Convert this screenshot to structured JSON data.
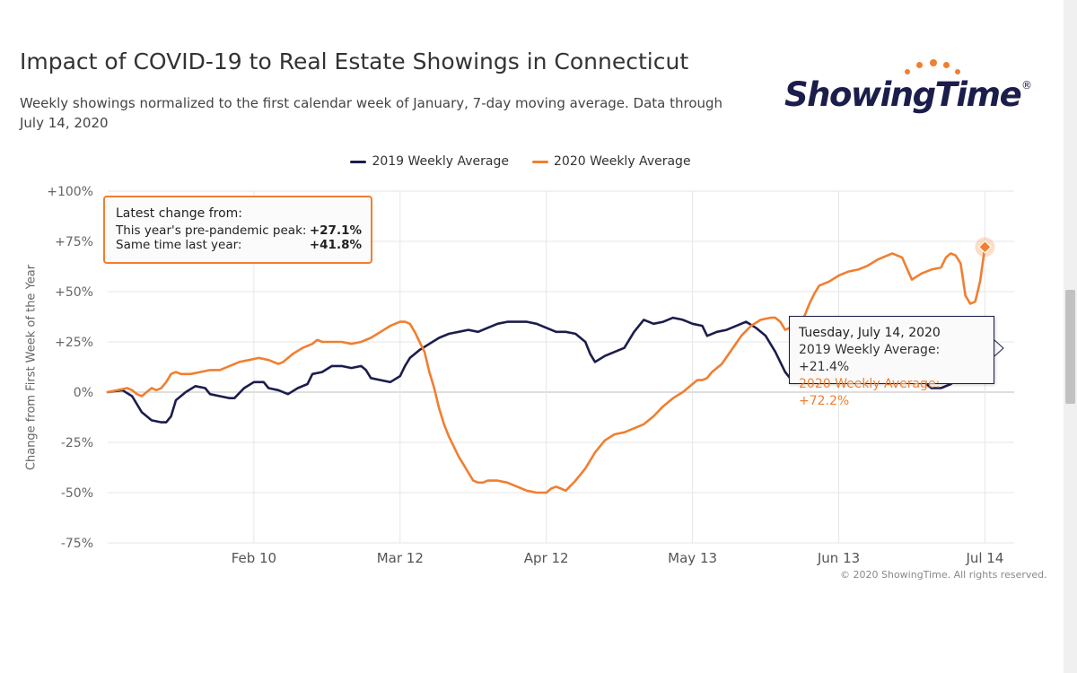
{
  "header": {
    "title": "Impact of COVID-19 to Real Estate Showings in Connecticut",
    "subtitle": "Weekly showings normalized to the first calendar week of January, 7-day moving average. Data through July 14, 2020"
  },
  "logo": {
    "text": "ShowingTime",
    "reg": "®",
    "color": "#1b1d4b",
    "dot_color": "#f07f30"
  },
  "colors": {
    "s2019": "#1b1d4b",
    "s2020": "#f07f30",
    "grid": "#e6e6e6",
    "text": "#333333"
  },
  "chart_data": {
    "type": "line",
    "title": "Impact of COVID-19 to Real Estate Showings in Connecticut",
    "ylabel": "Change from First Week of the Year",
    "xlabel": "",
    "ylim": [
      -75,
      100
    ],
    "x_range_days": [
      0,
      186
    ],
    "x_ticks": [
      {
        "label": "Feb 10",
        "day": 30
      },
      {
        "label": "Mar 12",
        "day": 60
      },
      {
        "label": "Apr 12",
        "day": 90
      },
      {
        "label": "May 13",
        "day": 120
      },
      {
        "label": "Jun 13",
        "day": 150
      },
      {
        "label": "Jul 14",
        "day": 180
      }
    ],
    "y_ticks": [
      {
        "label": "+100%",
        "value": 100
      },
      {
        "label": "+75%",
        "value": 75
      },
      {
        "label": "+50%",
        "value": 50
      },
      {
        "label": "+25%",
        "value": 25
      },
      {
        "label": "0%",
        "value": 0
      },
      {
        "label": "-25%",
        "value": -25
      },
      {
        "label": "-50%",
        "value": -50
      },
      {
        "label": "-75%",
        "value": -75
      }
    ],
    "legend_position": "top-center",
    "grid": true,
    "series": [
      {
        "name": "2019 Weekly Average",
        "color": "#1b1d4b",
        "points": [
          [
            0,
            0
          ],
          [
            3,
            1
          ],
          [
            5,
            -2
          ],
          [
            7,
            -10
          ],
          [
            9,
            -14
          ],
          [
            11,
            -15
          ],
          [
            12,
            -15
          ],
          [
            13,
            -12
          ],
          [
            14,
            -4
          ],
          [
            16,
            0
          ],
          [
            18,
            3
          ],
          [
            20,
            2
          ],
          [
            21,
            -1
          ],
          [
            23,
            -2
          ],
          [
            25,
            -3
          ],
          [
            26,
            -3
          ],
          [
            28,
            2
          ],
          [
            30,
            5
          ],
          [
            32,
            5
          ],
          [
            33,
            2
          ],
          [
            35,
            1
          ],
          [
            37,
            -1
          ],
          [
            39,
            2
          ],
          [
            41,
            4
          ],
          [
            42,
            9
          ],
          [
            44,
            10
          ],
          [
            46,
            13
          ],
          [
            48,
            13
          ],
          [
            50,
            12
          ],
          [
            52,
            13
          ],
          [
            53,
            11
          ],
          [
            54,
            7
          ],
          [
            56,
            6
          ],
          [
            58,
            5
          ],
          [
            60,
            8
          ],
          [
            61,
            13
          ],
          [
            62,
            17
          ],
          [
            64,
            21
          ],
          [
            66,
            24
          ],
          [
            68,
            27
          ],
          [
            70,
            29
          ],
          [
            72,
            30
          ],
          [
            74,
            31
          ],
          [
            76,
            30
          ],
          [
            78,
            32
          ],
          [
            80,
            34
          ],
          [
            82,
            35
          ],
          [
            84,
            35
          ],
          [
            86,
            35
          ],
          [
            88,
            34
          ],
          [
            90,
            32
          ],
          [
            92,
            30
          ],
          [
            94,
            30
          ],
          [
            96,
            29
          ],
          [
            98,
            25
          ],
          [
            99,
            19
          ],
          [
            100,
            15
          ],
          [
            102,
            18
          ],
          [
            104,
            20
          ],
          [
            106,
            22
          ],
          [
            108,
            30
          ],
          [
            110,
            36
          ],
          [
            112,
            34
          ],
          [
            114,
            35
          ],
          [
            116,
            37
          ],
          [
            118,
            36
          ],
          [
            120,
            34
          ],
          [
            122,
            33
          ],
          [
            123,
            28
          ],
          [
            125,
            30
          ],
          [
            127,
            31
          ],
          [
            129,
            33
          ],
          [
            131,
            35
          ],
          [
            133,
            32
          ],
          [
            135,
            28
          ],
          [
            137,
            20
          ],
          [
            139,
            10
          ],
          [
            140,
            7
          ],
          [
            142,
            7
          ],
          [
            144,
            9
          ],
          [
            146,
            12
          ],
          [
            148,
            14
          ],
          [
            150,
            17
          ],
          [
            152,
            19
          ],
          [
            154,
            20
          ],
          [
            156,
            21
          ],
          [
            158,
            20
          ],
          [
            160,
            20
          ],
          [
            162,
            18
          ],
          [
            164,
            15
          ],
          [
            166,
            10
          ],
          [
            168,
            4
          ],
          [
            169,
            2
          ],
          [
            171,
            2
          ],
          [
            173,
            4
          ],
          [
            175,
            8
          ],
          [
            177,
            14
          ],
          [
            179,
            19
          ],
          [
            180,
            21.4
          ]
        ]
      },
      {
        "name": "2020 Weekly Average",
        "color": "#f07f30",
        "points": [
          [
            0,
            0
          ],
          [
            2,
            1
          ],
          [
            4,
            2
          ],
          [
            5,
            1
          ],
          [
            6,
            -1
          ],
          [
            7,
            -2
          ],
          [
            8,
            0
          ],
          [
            9,
            2
          ],
          [
            10,
            1
          ],
          [
            11,
            2
          ],
          [
            12,
            5
          ],
          [
            13,
            9
          ],
          [
            14,
            10
          ],
          [
            15,
            9
          ],
          [
            17,
            9
          ],
          [
            19,
            10
          ],
          [
            21,
            11
          ],
          [
            23,
            11
          ],
          [
            25,
            13
          ],
          [
            27,
            15
          ],
          [
            29,
            16
          ],
          [
            31,
            17
          ],
          [
            33,
            16
          ],
          [
            35,
            14
          ],
          [
            36,
            15
          ],
          [
            38,
            19
          ],
          [
            40,
            22
          ],
          [
            42,
            24
          ],
          [
            43,
            26
          ],
          [
            44,
            25
          ],
          [
            46,
            25
          ],
          [
            48,
            25
          ],
          [
            50,
            24
          ],
          [
            52,
            25
          ],
          [
            54,
            27
          ],
          [
            56,
            30
          ],
          [
            58,
            33
          ],
          [
            59,
            34
          ],
          [
            60,
            35
          ],
          [
            61,
            35
          ],
          [
            62,
            34
          ],
          [
            63,
            30
          ],
          [
            64,
            25
          ],
          [
            65,
            20
          ],
          [
            66,
            10
          ],
          [
            67,
            2
          ],
          [
            68,
            -8
          ],
          [
            69,
            -16
          ],
          [
            70,
            -22
          ],
          [
            72,
            -32
          ],
          [
            74,
            -40
          ],
          [
            75,
            -44
          ],
          [
            76,
            -45
          ],
          [
            77,
            -45
          ],
          [
            78,
            -44
          ],
          [
            80,
            -44
          ],
          [
            82,
            -45
          ],
          [
            84,
            -47
          ],
          [
            86,
            -49
          ],
          [
            88,
            -50
          ],
          [
            90,
            -50
          ],
          [
            91,
            -48
          ],
          [
            92,
            -47
          ],
          [
            93,
            -48
          ],
          [
            94,
            -49
          ],
          [
            96,
            -44
          ],
          [
            98,
            -38
          ],
          [
            100,
            -30
          ],
          [
            102,
            -24
          ],
          [
            104,
            -21
          ],
          [
            106,
            -20
          ],
          [
            108,
            -18
          ],
          [
            110,
            -16
          ],
          [
            112,
            -12
          ],
          [
            114,
            -7
          ],
          [
            116,
            -3
          ],
          [
            118,
            0
          ],
          [
            119,
            2
          ],
          [
            120,
            4
          ],
          [
            121,
            6
          ],
          [
            122,
            6
          ],
          [
            123,
            7
          ],
          [
            124,
            10
          ],
          [
            126,
            14
          ],
          [
            128,
            21
          ],
          [
            130,
            28
          ],
          [
            132,
            33
          ],
          [
            134,
            36
          ],
          [
            136,
            37
          ],
          [
            137,
            37
          ],
          [
            138,
            35
          ],
          [
            139,
            31
          ],
          [
            141,
            33
          ],
          [
            143,
            38
          ],
          [
            144,
            44
          ],
          [
            145,
            49
          ],
          [
            146,
            53
          ],
          [
            148,
            55
          ],
          [
            150,
            58
          ],
          [
            152,
            60
          ],
          [
            154,
            61
          ],
          [
            156,
            63
          ],
          [
            158,
            66
          ],
          [
            160,
            68
          ],
          [
            161,
            69
          ],
          [
            163,
            67
          ],
          [
            165,
            56
          ],
          [
            167,
            59
          ],
          [
            169,
            61
          ],
          [
            171,
            62
          ],
          [
            172,
            67
          ],
          [
            173,
            69
          ],
          [
            174,
            68
          ],
          [
            175,
            64
          ],
          [
            176,
            48
          ],
          [
            177,
            44
          ],
          [
            178,
            45
          ],
          [
            179,
            55
          ],
          [
            180,
            72.2
          ]
        ]
      }
    ],
    "annotations": {
      "latest_change_box": {
        "heading": "Latest change from:",
        "rows": [
          {
            "label": "This year's pre-pandemic peak:",
            "value": "+27.1%"
          },
          {
            "label": "Same time last year:",
            "value": "+41.8%"
          }
        ]
      },
      "tooltip": {
        "date": "Tuesday, July 14, 2020",
        "line2019": "2019 Weekly Average: +21.4%",
        "line2020": "2020 Weekly Average: +72.2%"
      }
    }
  },
  "footer": {
    "credit": "© 2020 ShowingTime. All rights reserved."
  }
}
